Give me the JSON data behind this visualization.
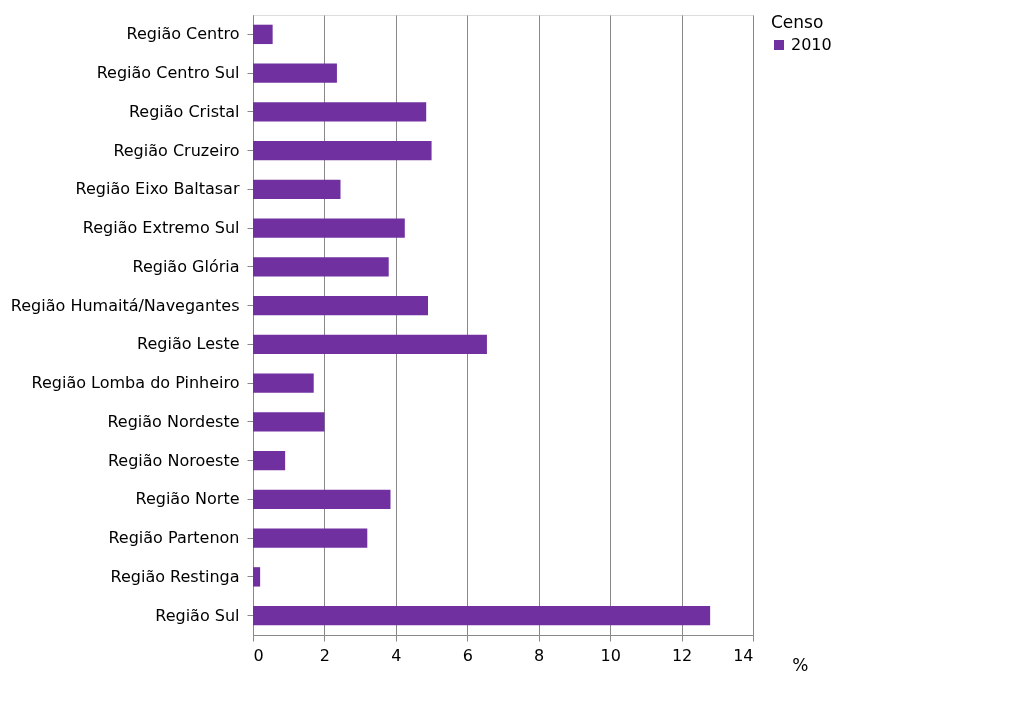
{
  "chart_data": {
    "type": "bar",
    "orientation": "horizontal",
    "xlabel": "%",
    "legend_title": "Censo",
    "legend": "right",
    "grid": "x",
    "categories": [
      "Região Centro",
      "Região Centro Sul",
      "Região Cristal",
      "Região Cruzeiro",
      "Região Eixo Baltasar",
      "Região Extremo Sul",
      "Região Glória",
      "Região Humaitá/Navegantes",
      "Região Leste",
      "Região Lomba do Pinheiro",
      "Região Nordeste",
      "Região Noroeste",
      "Região Norte",
      "Região Partenon",
      "Região Restinga",
      "Região Sul"
    ],
    "series": [
      {
        "name": "2010",
        "color": "#7030a0",
        "values": [
          0.55,
          2.35,
          4.85,
          5.0,
          2.45,
          4.25,
          3.8,
          4.9,
          6.55,
          1.7,
          2.0,
          0.9,
          3.85,
          3.2,
          0.2,
          12.8
        ]
      }
    ],
    "xlim": [
      0,
      14
    ],
    "xticks": [
      0,
      2,
      4,
      6,
      8,
      10,
      12,
      14
    ]
  }
}
